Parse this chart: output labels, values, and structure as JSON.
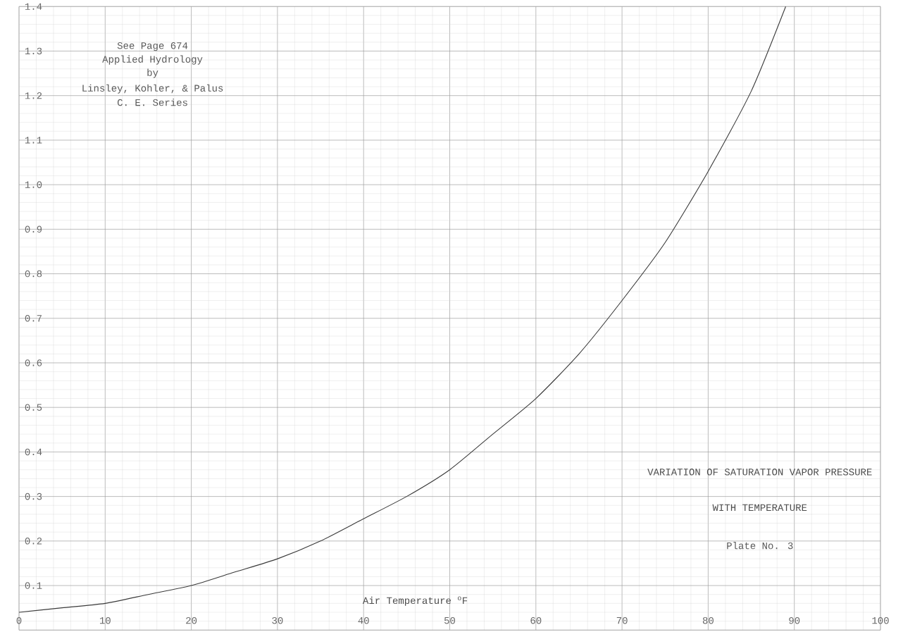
{
  "chart_data": {
    "type": "line",
    "title": "VARIATION OF SATURATION VAPOR PRESSURE",
    "subtitle": "WITH TEMPERATURE",
    "xlabel": "Air Temperature $^{o}$F",
    "annotations": [
      "Plate No. 3",
      "See Page 674",
      "Applied Hydrology",
      "by",
      "Linsley, Kohler, & Palus",
      "C. E. Series"
    ],
    "x": [
      0,
      5,
      10,
      15,
      20,
      25,
      30,
      35,
      40,
      45,
      50,
      55,
      60,
      65,
      70,
      75,
      80,
      85,
      89
    ],
    "values": [
      0.04,
      0.05,
      0.06,
      0.08,
      0.1,
      0.13,
      0.16,
      0.2,
      0.25,
      0.3,
      0.36,
      0.44,
      0.52,
      0.62,
      0.74,
      0.87,
      1.03,
      1.21,
      1.4
    ],
    "color": "#3a3a3a",
    "xlim": [
      0,
      100
    ],
    "ylim": [
      0,
      1.4
    ],
    "xticks": [
      0,
      10,
      20,
      30,
      40,
      50,
      60,
      70,
      80,
      90,
      100
    ],
    "yticks": [
      {
        "value": 0,
        "label": null
      },
      0.1,
      0.2,
      0.3,
      0.4,
      0.5,
      0.6,
      0.7,
      0.8,
      0.9,
      {
        "value": 1.0,
        "label": "1.0"
      },
      1.1,
      1.2,
      1.3,
      1.4
    ],
    "grid": true,
    "marker": "none",
    "line_style": "solid"
  }
}
